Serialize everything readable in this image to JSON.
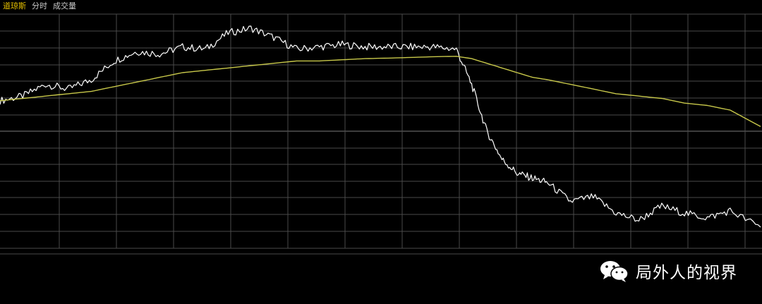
{
  "header": {
    "tabs": [
      {
        "label": "道琼斯",
        "active": true
      },
      {
        "label": "分时",
        "active": false
      },
      {
        "label": "成交量",
        "active": false
      }
    ]
  },
  "watermark": {
    "text": "局外人的视界",
    "icon": "wechat-icon"
  },
  "colors": {
    "background": "#000000",
    "grid": "#4a4a4a",
    "price_line": "#ffffff",
    "avg_line": "#c8c84a",
    "active_tab": "#e8c200"
  },
  "chart_data": {
    "type": "line",
    "title": "",
    "xlabel": "",
    "ylabel": "",
    "grid": true,
    "x": [
      0,
      3,
      6,
      9,
      12,
      15,
      18,
      21,
      24,
      27,
      30,
      33,
      36,
      39,
      42,
      45,
      48,
      51,
      54,
      57,
      60,
      62,
      64,
      66,
      68,
      70,
      72,
      75,
      78,
      81,
      84,
      87,
      90,
      93,
      96,
      100
    ],
    "ylim": [
      0,
      100
    ],
    "series": [
      {
        "values": [
          63,
          65,
          70,
          68,
          72,
          80,
          84,
          83,
          86,
          85,
          92,
          94,
          90,
          85,
          86,
          87,
          86,
          86,
          86,
          86,
          85,
          70,
          50,
          38,
          32,
          30,
          28,
          20,
          22,
          15,
          12,
          18,
          15,
          13,
          16,
          9
        ],
        "color": "#ffffff"
      },
      {
        "values": [
          63,
          64,
          65,
          66,
          67,
          69,
          71,
          73,
          75,
          76,
          77,
          78,
          79,
          80,
          80,
          80.5,
          81,
          81.2,
          81.5,
          81.8,
          82,
          81,
          79,
          77,
          75,
          73,
          72,
          70,
          68,
          66,
          65,
          64,
          62,
          61,
          59,
          52
        ],
        "color": "#c8c84a"
      }
    ]
  }
}
